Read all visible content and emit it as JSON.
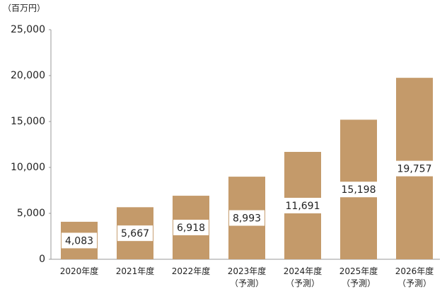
{
  "chart_data": {
    "type": "bar",
    "unit_label": "（百万円）",
    "categories": [
      "2020年度",
      "2021年度",
      "2022年度",
      "2023年度\n（予測）",
      "2024年度\n（予測）",
      "2025年度\n（予測）",
      "2026年度\n（予測）"
    ],
    "values": [
      4083,
      5667,
      6918,
      8993,
      11691,
      15198,
      19757
    ],
    "value_labels": [
      "4,083",
      "5,667",
      "6,918",
      "8,993",
      "11,691",
      "15,198",
      "19,757"
    ],
    "color": "#c49a6a",
    "ylim": [
      0,
      25000
    ],
    "yticks": [
      0,
      {
        "value": 5000,
        "label": "5,000"
      },
      {
        "value": 10000,
        "label": "10,000"
      },
      {
        "value": 15000,
        "label": "15,000"
      },
      {
        "value": 20000,
        "label": "20,000"
      },
      {
        "value": 25000,
        "label": "25,000"
      }
    ],
    "grid": false
  }
}
